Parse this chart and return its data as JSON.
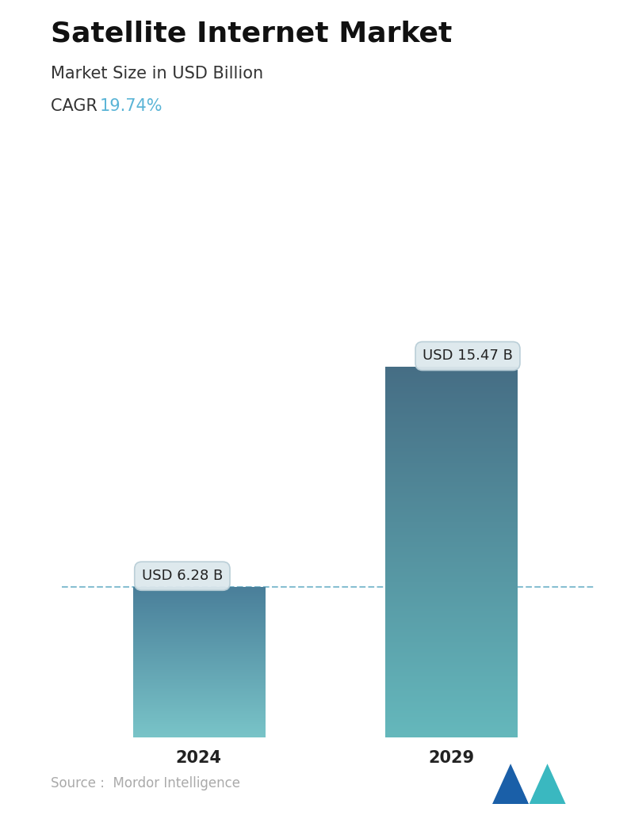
{
  "title": "Satellite Internet Market",
  "subtitle": "Market Size in USD Billion",
  "cagr_label": "CAGR  ",
  "cagr_value": "19.74%",
  "cagr_color": "#5ab4d6",
  "categories": [
    "2024",
    "2029"
  ],
  "values": [
    6.28,
    15.47
  ],
  "bar_labels": [
    "USD 6.28 B",
    "USD 15.47 B"
  ],
  "bar_top_colors": [
    "#4a7f9a",
    "#466e85"
  ],
  "bar_bottom_colors": [
    "#79c4c8",
    "#65b8bc"
  ],
  "dashed_line_color": "#7ab8cc",
  "dashed_line_value": 6.28,
  "background_color": "#ffffff",
  "title_fontsize": 26,
  "subtitle_fontsize": 15,
  "cagr_fontsize": 15,
  "tick_fontsize": 15,
  "annotation_fontsize": 13,
  "source_text": "Source :  Mordor Intelligence",
  "source_color": "#aaaaaa",
  "ylim": [
    0,
    19.5
  ],
  "bar_positions": [
    0.27,
    0.73
  ],
  "bar_width": 0.24,
  "xlim": [
    0,
    1
  ]
}
